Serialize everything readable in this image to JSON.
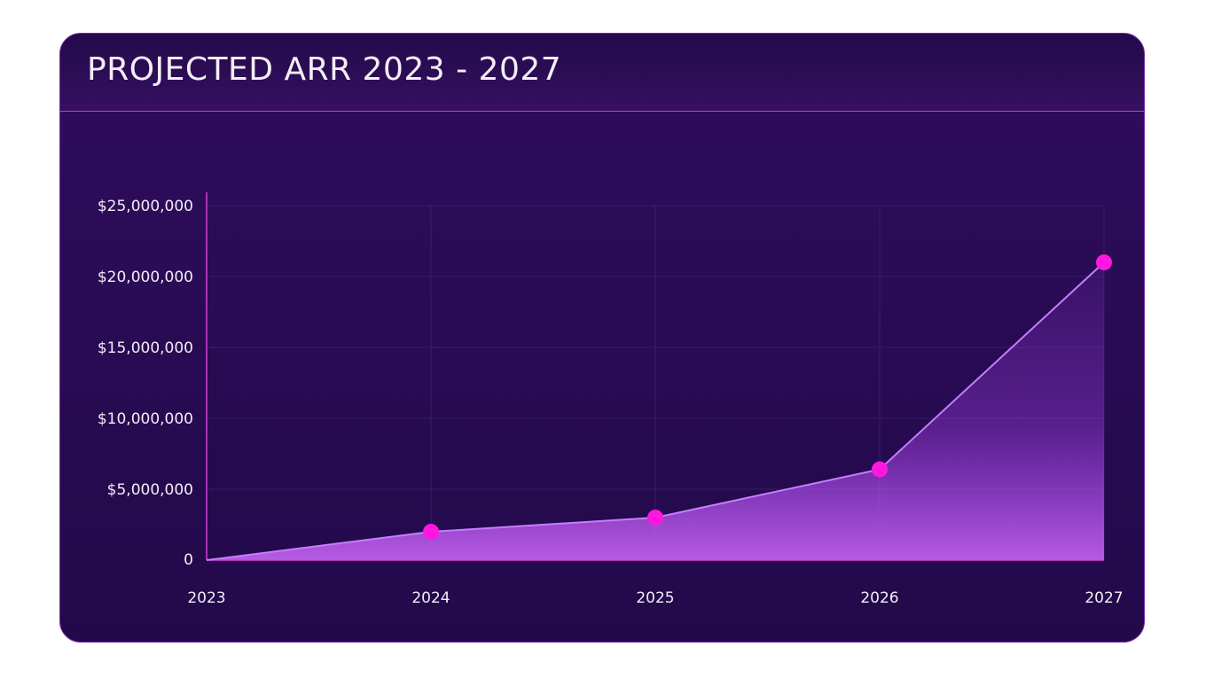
{
  "title": "PROJECTED ARR 2023 - 2027",
  "chart_data": {
    "type": "area",
    "title": "PROJECTED ARR 2023 - 2027",
    "xlabel": "",
    "ylabel": "",
    "x": [
      "2023",
      "2024",
      "2025",
      "2026",
      "2027"
    ],
    "values": [
      0,
      2000000,
      3000000,
      6400000,
      21000000
    ],
    "ylim": [
      0,
      25000000
    ],
    "yticks": [
      0,
      5000000,
      10000000,
      15000000,
      20000000,
      25000000
    ],
    "ytick_labels": [
      "0",
      "$5,000,000",
      "$10,000,000",
      "$15,000,000",
      "$20,000,000",
      "$25,000,000"
    ],
    "grid": true,
    "legend": "none",
    "colors": {
      "background": "#2a0b55",
      "line": "#c77dff",
      "marker": "#ff17e0",
      "axis": "#d63fd6",
      "fill": "#b347ff"
    }
  }
}
